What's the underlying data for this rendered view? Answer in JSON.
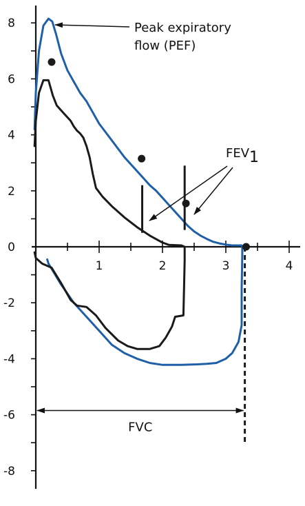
{
  "colors": {
    "blue": "#1e5fa8",
    "black": "#1a1a1a"
  },
  "chart_data": {
    "type": "line",
    "xlim": [
      0,
      4
    ],
    "ylim": [
      -8.5,
      8.5
    ],
    "grid": false,
    "x_ticks": [
      {
        "value": 1,
        "label": "1"
      },
      {
        "value": 2,
        "label": "2"
      },
      {
        "value": 3,
        "label": "3"
      },
      {
        "value": 4,
        "label": "4"
      }
    ],
    "y_ticks": [
      {
        "value": 8,
        "label": "8"
      },
      {
        "value": 6,
        "label": "6"
      },
      {
        "value": 4,
        "label": "4"
      },
      {
        "value": 2,
        "label": "2"
      },
      {
        "value": 0,
        "label": "0"
      },
      {
        "value": -2,
        "label": "-2"
      },
      {
        "value": -4,
        "label": "-4"
      },
      {
        "value": -6,
        "label": "-6"
      },
      {
        "value": -8,
        "label": "-8"
      }
    ],
    "series": [
      {
        "color": "blue",
        "points": [
          [
            -0.02,
            4.2
          ],
          [
            0.0,
            5.5
          ],
          [
            0.05,
            7.0
          ],
          [
            0.12,
            7.9
          ],
          [
            0.2,
            8.15
          ],
          [
            0.26,
            8.05
          ],
          [
            0.32,
            7.6
          ],
          [
            0.4,
            6.9
          ],
          [
            0.5,
            6.3
          ],
          [
            0.6,
            5.9
          ],
          [
            0.7,
            5.5
          ],
          [
            0.8,
            5.2
          ],
          [
            0.9,
            4.8
          ],
          [
            1.0,
            4.4
          ],
          [
            1.1,
            4.1
          ],
          [
            1.2,
            3.8
          ],
          [
            1.3,
            3.5
          ],
          [
            1.4,
            3.2
          ],
          [
            1.5,
            2.95
          ],
          [
            1.6,
            2.7
          ],
          [
            1.7,
            2.45
          ],
          [
            1.8,
            2.2
          ],
          [
            1.9,
            2.0
          ],
          [
            2.0,
            1.75
          ],
          [
            2.1,
            1.5
          ],
          [
            2.2,
            1.25
          ],
          [
            2.3,
            1.0
          ],
          [
            2.4,
            0.75
          ],
          [
            2.5,
            0.55
          ],
          [
            2.6,
            0.4
          ],
          [
            2.7,
            0.28
          ],
          [
            2.8,
            0.18
          ],
          [
            2.9,
            0.12
          ],
          [
            3.0,
            0.08
          ],
          [
            3.1,
            0.05
          ],
          [
            3.25,
            0.05
          ],
          [
            3.26,
            0.0
          ],
          [
            3.26,
            -0.3
          ],
          [
            3.25,
            -1.5
          ],
          [
            3.25,
            -2.8
          ],
          [
            3.2,
            -3.4
          ],
          [
            3.1,
            -3.8
          ],
          [
            3.0,
            -4.0
          ],
          [
            2.85,
            -4.15
          ],
          [
            2.7,
            -4.18
          ],
          [
            2.55,
            -4.2
          ],
          [
            2.3,
            -4.22
          ],
          [
            2.0,
            -4.22
          ],
          [
            1.8,
            -4.15
          ],
          [
            1.6,
            -4.0
          ],
          [
            1.4,
            -3.8
          ],
          [
            1.2,
            -3.5
          ],
          [
            1.0,
            -3.0
          ],
          [
            0.8,
            -2.5
          ],
          [
            0.6,
            -2.0
          ],
          [
            0.4,
            -1.35
          ],
          [
            0.2,
            -0.6
          ],
          [
            0.18,
            -0.45
          ]
        ]
      },
      {
        "color": "black",
        "points": [
          [
            -0.02,
            3.6
          ],
          [
            0.0,
            4.5
          ],
          [
            0.05,
            5.5
          ],
          [
            0.12,
            5.95
          ],
          [
            0.2,
            5.95
          ],
          [
            0.27,
            5.4
          ],
          [
            0.33,
            5.05
          ],
          [
            0.45,
            4.75
          ],
          [
            0.55,
            4.5
          ],
          [
            0.6,
            4.3
          ],
          [
            0.65,
            4.15
          ],
          [
            0.7,
            4.05
          ],
          [
            0.75,
            3.9
          ],
          [
            0.8,
            3.6
          ],
          [
            0.85,
            3.2
          ],
          [
            0.9,
            2.6
          ],
          [
            0.95,
            2.1
          ],
          [
            1.05,
            1.8
          ],
          [
            1.2,
            1.45
          ],
          [
            1.4,
            1.05
          ],
          [
            1.6,
            0.7
          ],
          [
            1.8,
            0.4
          ],
          [
            2.0,
            0.15
          ],
          [
            2.1,
            0.07
          ],
          [
            2.3,
            0.05
          ],
          [
            2.35,
            0.0
          ],
          [
            2.35,
            -0.5
          ],
          [
            2.34,
            -1.5
          ],
          [
            2.33,
            -2.45
          ],
          [
            2.2,
            -2.5
          ],
          [
            2.15,
            -2.85
          ],
          [
            2.05,
            -3.25
          ],
          [
            1.95,
            -3.55
          ],
          [
            1.8,
            -3.65
          ],
          [
            1.6,
            -3.65
          ],
          [
            1.45,
            -3.55
          ],
          [
            1.3,
            -3.35
          ],
          [
            1.1,
            -2.9
          ],
          [
            0.95,
            -2.45
          ],
          [
            0.8,
            -2.15
          ],
          [
            0.65,
            -2.1
          ],
          [
            0.55,
            -1.9
          ],
          [
            0.4,
            -1.3
          ],
          [
            0.25,
            -0.75
          ],
          [
            0.1,
            -0.6
          ],
          [
            0.0,
            -0.4
          ],
          [
            -0.02,
            -0.2
          ]
        ]
      }
    ],
    "dots": [
      [
        0.25,
        6.6
      ],
      [
        1.67,
        3.15
      ],
      [
        2.37,
        1.55
      ],
      [
        3.32,
        0.0
      ]
    ],
    "fev_lines": [
      {
        "x": 1.68,
        "y_from": 0.5,
        "y_to": 2.2
      },
      {
        "x": 2.35,
        "y_from": 0.6,
        "y_to": 2.9
      }
    ],
    "fvc_dashed_line": {
      "x": 3.3,
      "y_from": 0.0,
      "y_to": -7.0
    },
    "fvc_arrow": {
      "x_from": 0.0,
      "x_to": 3.3,
      "y": -5.85
    },
    "annotations": {
      "pef_line1": "Peak expiratory",
      "pef_line2": "flow (PEF)",
      "fev_main": "FEV",
      "fev_sub": "1",
      "fvc": "FVC"
    }
  }
}
